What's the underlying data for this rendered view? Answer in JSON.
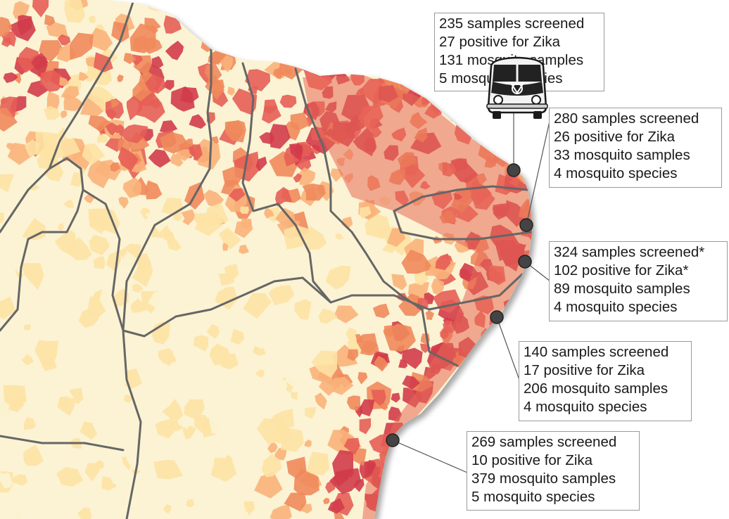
{
  "sampling_sites": [
    {
      "samples_screened": "235 samples screened",
      "positive": "27 positive for Zika",
      "mosquito_samples": "131 mosquito samples",
      "mosquito_species": "5 mosquito species"
    },
    {
      "samples_screened": "280 samples screened",
      "positive": "26 positive for Zika",
      "mosquito_samples": "33 mosquito samples",
      "mosquito_species": "4 mosquito species"
    },
    {
      "samples_screened": "324 samples screened*",
      "positive": "102 positive for Zika*",
      "mosquito_samples": "89 mosquito samples",
      "mosquito_species": "4 mosquito species"
    },
    {
      "samples_screened": "140 samples screened",
      "positive": "17 positive for Zika",
      "mosquito_samples": "206 mosquito samples",
      "mosquito_species": "4 mosquito species"
    },
    {
      "samples_screened": "269 samples screened",
      "positive": "10 positive for Zika",
      "mosquito_samples": "379 mosquito samples",
      "mosquito_species": "5 mosquito species"
    }
  ],
  "colors": {
    "low": "#fbf3d3",
    "light": "#fde2a4",
    "medium": "#f9b27a",
    "high": "#f08a5c",
    "very_high": "#e55e55",
    "highest": "#d23c4a",
    "border": "#666666",
    "marker": "#444444",
    "ocean": "#ffffff"
  },
  "icons": {
    "vehicle": "van-icon",
    "site_marker": "circle-marker"
  }
}
